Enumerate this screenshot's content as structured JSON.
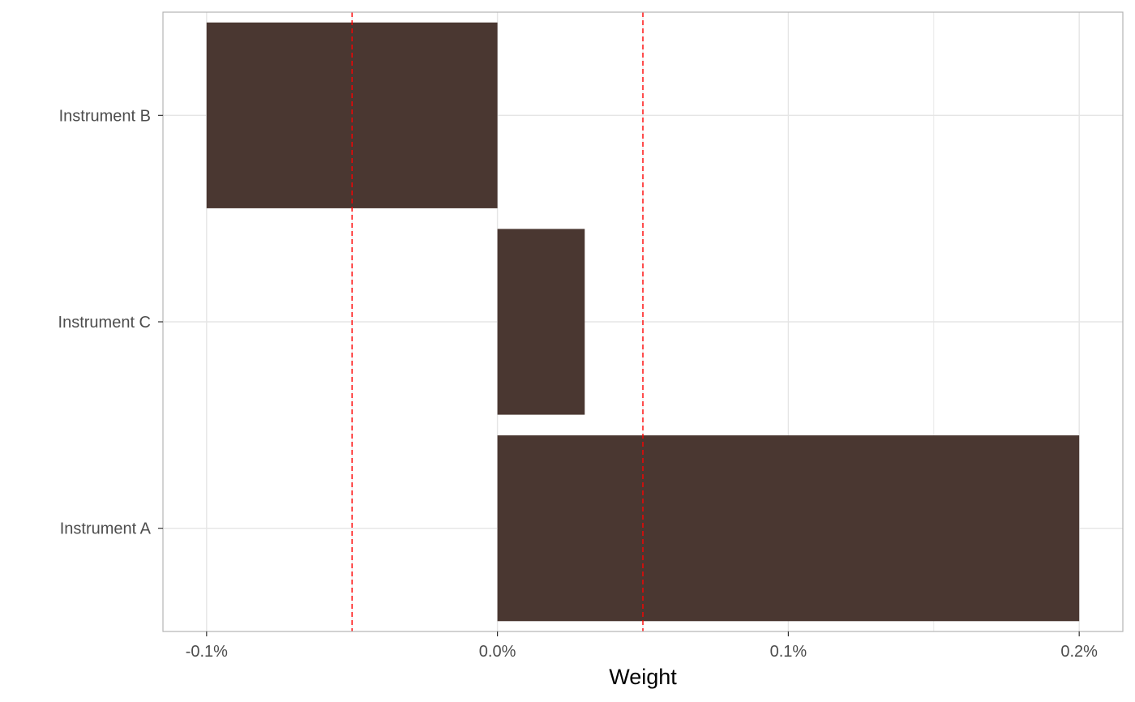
{
  "chart_data": {
    "type": "bar",
    "orientation": "horizontal",
    "categories": [
      "Instrument B",
      "Instrument C",
      "Instrument A"
    ],
    "values": [
      -0.001,
      0.0003,
      0.002
    ],
    "xlabel": "Weight",
    "ylabel": "",
    "xlim": [
      -0.00115,
      0.00215
    ],
    "x_ticks": [
      -0.001,
      0.0,
      0.001,
      0.002
    ],
    "x_tick_labels": [
      "-0.1%",
      "0.0%",
      "0.1%",
      "0.2%"
    ],
    "x_minor_gridlines": [
      -0.0005,
      0.0005,
      0.0015
    ],
    "reference_lines": [
      -0.0005,
      0.0005
    ],
    "reference_line_style": "dashed",
    "grid": true,
    "legend": "none",
    "colors": {
      "bar": "#4a3731",
      "reference_line": "#ff0000",
      "grid": "#e5e5e5",
      "panel_border": "#b3b3b3",
      "tick_label": "#4d4d4d"
    }
  }
}
